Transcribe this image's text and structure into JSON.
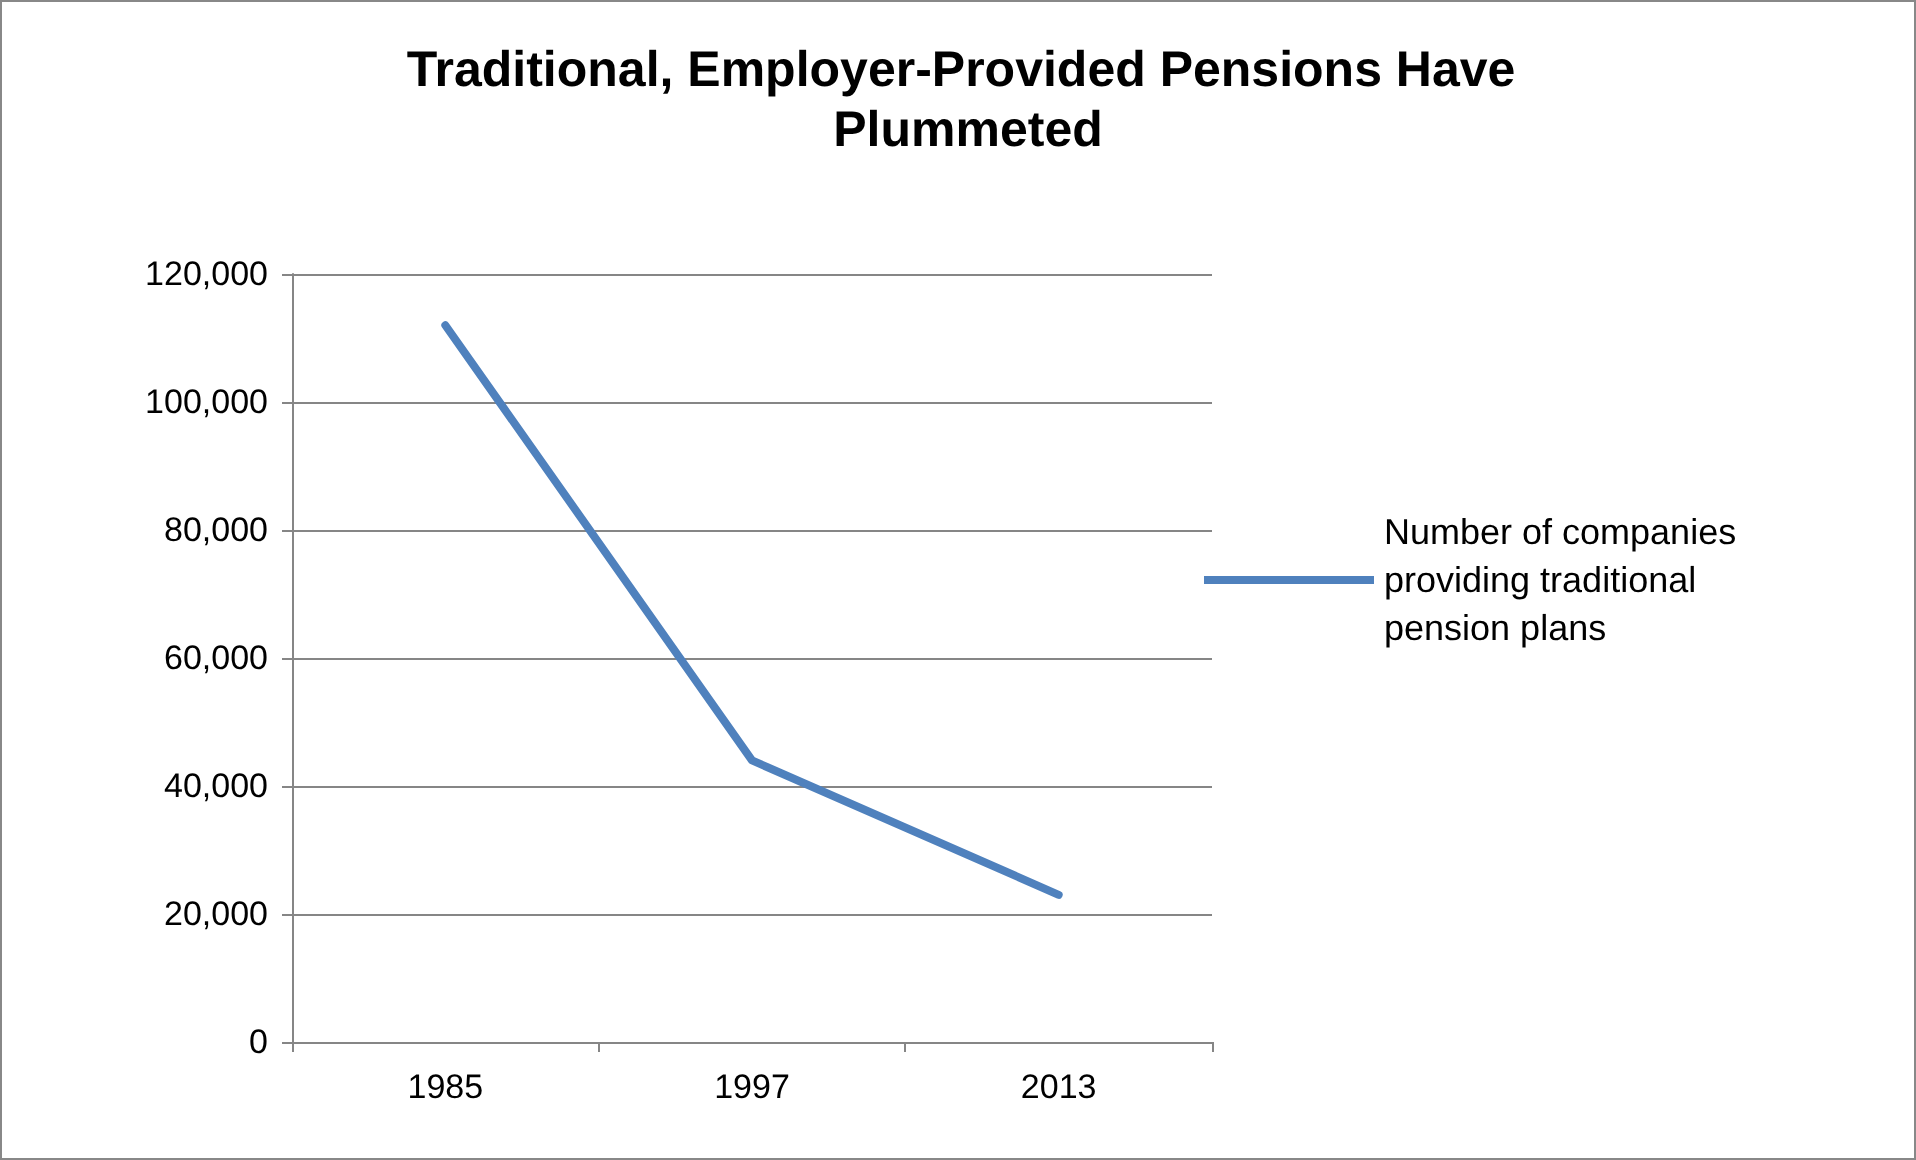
{
  "chart_data": {
    "type": "line",
    "title": "Traditional, Employer-Provided Pensions Have Plummeted",
    "categories": [
      "1985",
      "1997",
      "2013"
    ],
    "series": [
      {
        "name": "Number of companies providing traditional pension plans",
        "color": "#4f81bd",
        "values": [
          112000,
          44000,
          23000
        ]
      }
    ],
    "ylim": [
      0,
      120000
    ],
    "yticks": [
      0,
      {
        "value": 20000,
        "label": "20,000"
      },
      {
        "value": 40000,
        "label": "40,000"
      },
      {
        "value": 60000,
        "label": "60,000"
      },
      {
        "value": 80000,
        "label": "80,000"
      },
      {
        "value": 100000,
        "label": "100,000"
      },
      {
        "value": 120000,
        "label": "120,000"
      }
    ],
    "grid": "y",
    "legend": "right",
    "marker": "none",
    "line_style": "solid"
  }
}
